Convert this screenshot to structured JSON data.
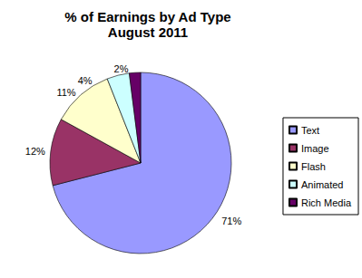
{
  "chart_data": {
    "type": "pie",
    "title": "% of Earnings by Ad Type",
    "subtitle": "August 2011",
    "categories": [
      "Text",
      "Image",
      "Flash",
      "Animated",
      "Rich Media"
    ],
    "values": [
      71,
      12,
      11,
      4,
      2
    ],
    "value_labels": [
      "71%",
      "12%",
      "11%",
      "4%",
      "2%"
    ],
    "colors": [
      "#9999ff",
      "#993366",
      "#ffffcc",
      "#ccffff",
      "#660066"
    ],
    "data_labels": true,
    "legend": "right"
  }
}
